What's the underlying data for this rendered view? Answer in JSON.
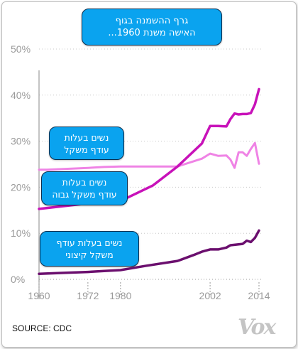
{
  "chart_data": {
    "type": "line",
    "title": "גרף ההשמנה בגוף האישה משנת 1960...",
    "title_lines": [
      "גרף ההשמנה בגוף",
      "האישה משנת 1960..."
    ],
    "xlim": [
      1960,
      2014
    ],
    "ylim": [
      0,
      50
    ],
    "y_ticks": [
      0,
      10,
      20,
      30,
      40,
      50
    ],
    "y_tick_labels": [
      "0%",
      "10%",
      "20%",
      "30%",
      "40%",
      "50%"
    ],
    "x_ticks": [
      1960,
      1972,
      1980,
      2002,
      2014
    ],
    "x_tick_labels": [
      "1960",
      "1972",
      "1980",
      "2002",
      "2014"
    ],
    "grid": "horizontal dotted",
    "series": [
      {
        "name": "נשים בעלות עודף משקל",
        "label_lines": [
          "נשים בעלות",
          "עודף משקל"
        ],
        "color": "#ef83e5",
        "x": [
          1960,
          1962,
          1972,
          1976,
          1980,
          1988,
          1994,
          2000,
          2002,
          2004,
          2006,
          2007,
          2008,
          2009,
          2010,
          2011,
          2012,
          2013,
          2014
        ],
        "y": [
          23.8,
          23.8,
          24.2,
          24.4,
          24.5,
          24.5,
          24.5,
          26.2,
          27.3,
          26.8,
          26.9,
          26.0,
          24.2,
          27.6,
          27.6,
          26.8,
          28.3,
          29.6,
          25.1
        ]
      },
      {
        "name": "נשים בעלות עודף משקל גבוה",
        "label_lines": [
          "נשים בעלות",
          "עודף משקל גבוה"
        ],
        "color": "#c812b9",
        "x": [
          1960,
          1962,
          1972,
          1976,
          1980,
          1988,
          1994,
          2000,
          2002,
          2004,
          2006,
          2007,
          2008,
          2009,
          2010,
          2011,
          2012,
          2013,
          2014
        ],
        "y": [
          15.3,
          15.5,
          16.5,
          16.8,
          17.0,
          20.4,
          24.5,
          29.5,
          33.3,
          33.3,
          33.2,
          34.8,
          36.0,
          35.8,
          35.9,
          35.9,
          36.1,
          38.0,
          41.3
        ]
      },
      {
        "name": "נשים בעלות עודף משקל קיצוני",
        "label_lines": [
          "נשים בעלות עודף",
          "משקל קיצוני"
        ],
        "color": "#6b0f6e",
        "x": [
          1960,
          1966,
          1972,
          1976,
          1980,
          1986,
          1994,
          1998,
          2000,
          2002,
          2004,
          2006,
          2007,
          2008,
          2010,
          2011,
          2012,
          2013,
          2014
        ],
        "y": [
          1.2,
          1.4,
          1.6,
          1.8,
          2.0,
          2.9,
          4.0,
          5.3,
          6.0,
          6.5,
          6.5,
          6.9,
          7.4,
          7.5,
          7.7,
          8.4,
          8.1,
          9.0,
          10.6
        ]
      }
    ]
  },
  "footer": {
    "source": "SOURCE: CDC",
    "logo": "Vox"
  }
}
